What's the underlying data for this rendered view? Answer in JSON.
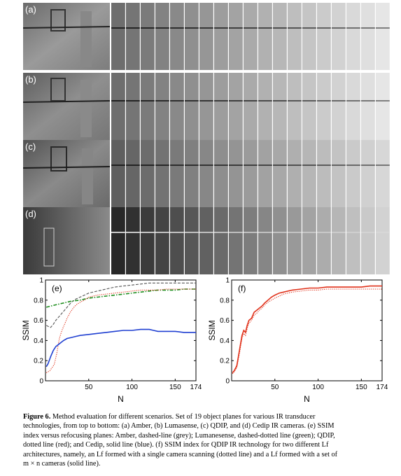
{
  "panels": [
    {
      "letter": "(a)",
      "scenario": "Amber"
    },
    {
      "letter": "(b)",
      "scenario": "Lumasense"
    },
    {
      "letter": "(c)",
      "scenario": "QDIP"
    },
    {
      "letter": "(d)",
      "scenario": "Cedip"
    }
  ],
  "colors": {
    "grey": "#555555",
    "green": "#1a8c1a",
    "red": "#e0311a",
    "blue": "#1f3fd1"
  },
  "chart_data": [
    {
      "type": "line",
      "panel_label": "(e)",
      "xlabel": "N",
      "ylabel": "SSIM",
      "xlim": [
        0,
        174
      ],
      "ylim": [
        0,
        1
      ],
      "xticks": [
        0,
        50,
        100,
        150,
        174
      ],
      "xtick_labels": [
        "",
        "50",
        "100",
        "150",
        "174"
      ],
      "yticks": [
        0,
        0.2,
        0.4,
        0.6,
        0.8,
        1
      ],
      "ytick_labels": [
        "0",
        "0.2",
        "0.4",
        "0.6",
        "0.8",
        "1"
      ],
      "grid": false,
      "series": [
        {
          "style": "dashed",
          "color": "grey",
          "x": [
            1,
            3,
            6,
            9,
            12,
            15,
            18,
            22,
            26,
            30,
            35,
            40,
            45,
            50,
            60,
            70,
            80,
            90,
            100,
            110,
            120,
            130,
            140,
            150,
            160,
            174
          ],
          "y": [
            0.55,
            0.54,
            0.53,
            0.56,
            0.6,
            0.63,
            0.66,
            0.7,
            0.74,
            0.78,
            0.81,
            0.83,
            0.85,
            0.87,
            0.89,
            0.91,
            0.93,
            0.94,
            0.95,
            0.96,
            0.97,
            0.97,
            0.97,
            0.97,
            0.97,
            0.97
          ]
        },
        {
          "style": "dashdot",
          "color": "green",
          "x": [
            1,
            10,
            20,
            30,
            40,
            50,
            60,
            70,
            80,
            90,
            100,
            110,
            120,
            130,
            140,
            150,
            160,
            174
          ],
          "y": [
            0.73,
            0.75,
            0.77,
            0.79,
            0.8,
            0.82,
            0.83,
            0.84,
            0.85,
            0.86,
            0.87,
            0.88,
            0.89,
            0.9,
            0.9,
            0.9,
            0.91,
            0.91
          ]
        },
        {
          "style": "dotted",
          "color": "red",
          "x": [
            1,
            5,
            10,
            13,
            16,
            19,
            22,
            25,
            28,
            31,
            35,
            40,
            45,
            50,
            60,
            70,
            80,
            90,
            100,
            110,
            120,
            130,
            140,
            150,
            160,
            174
          ],
          "y": [
            0.08,
            0.1,
            0.16,
            0.27,
            0.42,
            0.5,
            0.56,
            0.62,
            0.67,
            0.71,
            0.75,
            0.78,
            0.8,
            0.83,
            0.85,
            0.86,
            0.87,
            0.88,
            0.89,
            0.9,
            0.9,
            0.9,
            0.91,
            0.91,
            0.91,
            0.91
          ]
        },
        {
          "style": "solid",
          "color": "blue",
          "x": [
            1,
            3,
            6,
            9,
            12,
            15,
            18,
            21,
            25,
            30,
            35,
            40,
            50,
            60,
            70,
            80,
            90,
            100,
            110,
            120,
            125,
            130,
            140,
            150,
            160,
            174
          ],
          "y": [
            0.14,
            0.17,
            0.24,
            0.3,
            0.34,
            0.36,
            0.38,
            0.4,
            0.42,
            0.43,
            0.44,
            0.45,
            0.46,
            0.47,
            0.48,
            0.49,
            0.5,
            0.5,
            0.51,
            0.51,
            0.5,
            0.49,
            0.49,
            0.49,
            0.48,
            0.48
          ]
        }
      ]
    },
    {
      "type": "line",
      "panel_label": "(f)",
      "xlabel": "N",
      "ylabel": "SSIM",
      "xlim": [
        0,
        174
      ],
      "ylim": [
        0,
        1
      ],
      "xticks": [
        0,
        50,
        100,
        150,
        174
      ],
      "xtick_labels": [
        "",
        "50",
        "100",
        "150",
        "174"
      ],
      "yticks": [
        0,
        0.2,
        0.4,
        0.6,
        0.8,
        1
      ],
      "ytick_labels": [
        "0",
        "0.2",
        "0.4",
        "0.6",
        "0.8",
        "1"
      ],
      "grid": false,
      "series": [
        {
          "style": "solid",
          "color": "red",
          "x": [
            1,
            3,
            6,
            9,
            12,
            14,
            16,
            18,
            20,
            23,
            26,
            29,
            32,
            35,
            38,
            42,
            46,
            50,
            55,
            60,
            70,
            80,
            90,
            100,
            110,
            120,
            130,
            140,
            150,
            160,
            174
          ],
          "y": [
            0.08,
            0.1,
            0.15,
            0.3,
            0.45,
            0.5,
            0.48,
            0.55,
            0.6,
            0.62,
            0.68,
            0.7,
            0.72,
            0.74,
            0.77,
            0.8,
            0.83,
            0.85,
            0.87,
            0.88,
            0.9,
            0.91,
            0.92,
            0.92,
            0.93,
            0.93,
            0.93,
            0.93,
            0.93,
            0.94,
            0.94
          ]
        },
        {
          "style": "dotted",
          "color": "red",
          "x": [
            1,
            3,
            6,
            9,
            12,
            14,
            16,
            18,
            20,
            23,
            26,
            29,
            32,
            35,
            38,
            42,
            46,
            50,
            55,
            60,
            70,
            80,
            90,
            100,
            110,
            120,
            130,
            140,
            150,
            160,
            174
          ],
          "y": [
            0.07,
            0.09,
            0.13,
            0.27,
            0.42,
            0.47,
            0.45,
            0.52,
            0.57,
            0.6,
            0.65,
            0.67,
            0.7,
            0.72,
            0.75,
            0.78,
            0.8,
            0.82,
            0.84,
            0.86,
            0.88,
            0.89,
            0.9,
            0.9,
            0.91,
            0.91,
            0.91,
            0.91,
            0.91,
            0.91,
            0.91
          ]
        }
      ]
    }
  ],
  "caption": {
    "label": "Figure 6.",
    "lines": [
      " Method evaluation for different scenarios. Set of 19 object planes for various IR transducer",
      "technologies, from top to bottom: (a) Amber, (b) Lumasense, (c) QDIP, and (d) Cedip IR cameras. (e) SSIM",
      "index versus refocusing planes: Amber, dashed-line (grey); Lumanesense, dashed-dotted line (green); QDIP,",
      "dotted line (red); and Cedip, solid line (blue). (f) SSIM index for QDIP IR technology for two different Lf",
      "architectures, namely, an Lf formed with a single camera scanning (dotted line) and a Lf formed with a set of",
      "m × n cameras (solid line)."
    ]
  }
}
